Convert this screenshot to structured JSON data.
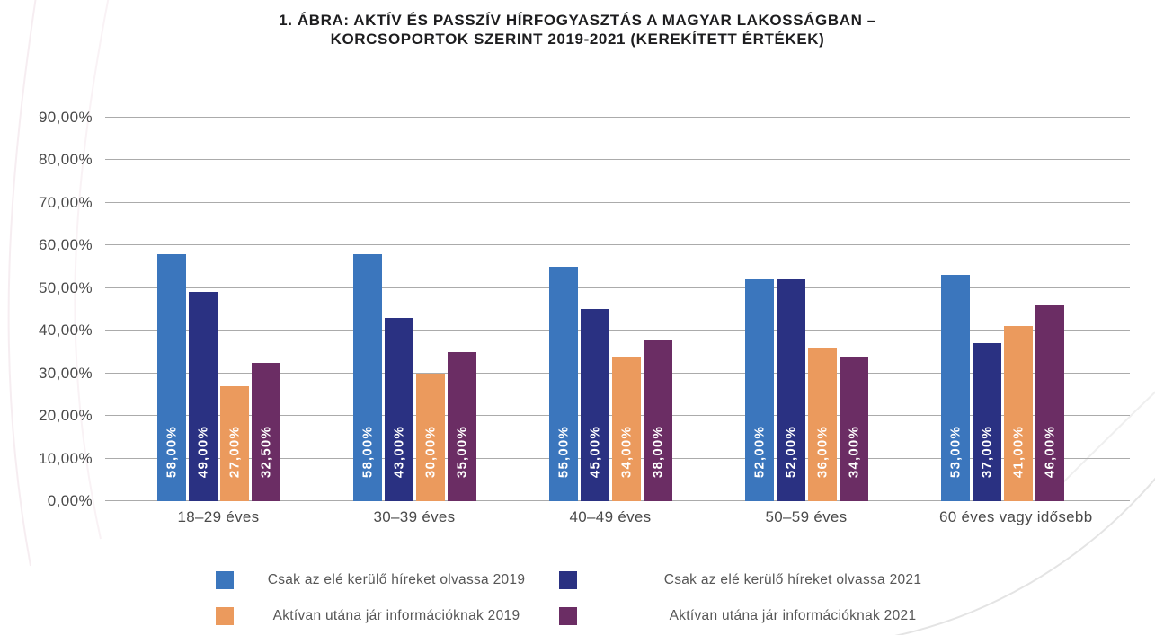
{
  "title": {
    "line1": "1. ÁBRA: AKTÍV ÉS PASSZÍV HÍRFOGYASZTÁS A MAGYAR LAKOSSÁGBAN –",
    "line2": "KORCSOPORTOK SZERINT 2019-2021 (KEREKÍTETT ÉRTÉKEK)"
  },
  "chart_data": {
    "type": "bar",
    "title": "1. ÁBRA: AKTÍV ÉS PASSZÍV HÍRFOGYASZTÁS A MAGYAR LAKOSSÁGBAN – KORCSOPORTOK SZERINT 2019-2021 (KEREKÍTETT ÉRTÉKEK)",
    "categories": [
      "18–29 éves",
      "30–39 éves",
      "40–49 éves",
      "50–59 éves",
      "60 éves vagy idősebb"
    ],
    "series": [
      {
        "name": "Csak az elé kerülő híreket olvassa 2019",
        "color": "#3B76BD",
        "values": [
          58,
          58,
          55,
          52,
          53
        ],
        "labels": [
          "58,00%",
          "58,00%",
          "55,00%",
          "52,00%",
          "53,00%"
        ]
      },
      {
        "name": "Csak az elé kerülő híreket olvassa 2021",
        "color": "#2A3182",
        "values": [
          49,
          43,
          45,
          52,
          37
        ],
        "labels": [
          "49,00%",
          "43,00%",
          "45,00%",
          "52,00%",
          "37,00%"
        ]
      },
      {
        "name": "Aktívan utána jár információknak 2019",
        "color": "#EB9A5D",
        "values": [
          27,
          30,
          34,
          36,
          41
        ],
        "labels": [
          "27,00%",
          "30,00%",
          "34,00%",
          "36,00%",
          "41,00%"
        ]
      },
      {
        "name": "Aktívan utána jár információknak 2021",
        "color": "#6B2D64",
        "values": [
          32.5,
          35,
          38,
          34,
          46
        ],
        "labels": [
          "32,50%",
          "35,00%",
          "38,00%",
          "34,00%",
          "46,00%"
        ]
      }
    ],
    "ticks": [
      {
        "v": 0,
        "label": "0,00%"
      },
      {
        "v": 10,
        "label": "10,00%"
      },
      {
        "v": 20,
        "label": "20,00%"
      },
      {
        "v": 30,
        "label": "30,00%"
      },
      {
        "v": 40,
        "label": "40,00%"
      },
      {
        "v": 50,
        "label": "50,00%"
      },
      {
        "v": 60,
        "label": "60,00%"
      },
      {
        "v": 70,
        "label": "70,00%"
      },
      {
        "v": 80,
        "label": "80,00%"
      },
      {
        "v": 90,
        "label": "90,00%"
      }
    ],
    "ylim": [
      0,
      95
    ],
    "grid": true,
    "legend_position": "bottom",
    "colors": {
      "gridline": "#ababab",
      "axis_text": "#4a4a4a",
      "title_text": "#1d1d1f",
      "bar_label_text": "#ffffff",
      "legend_text": "#565656"
    }
  }
}
